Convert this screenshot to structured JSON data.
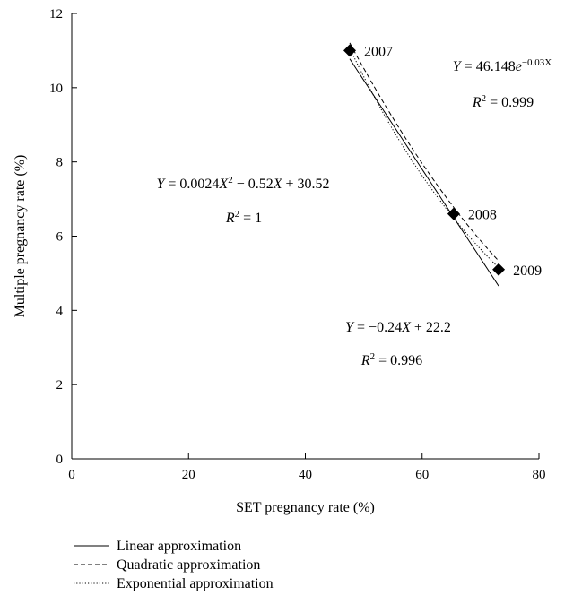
{
  "chart_data": {
    "type": "scatter",
    "xlabel": "SET pregnancy rate (%)",
    "ylabel": "Multiple pregnancy rate (%)",
    "xlim": [
      0,
      80
    ],
    "ylim": [
      0,
      12
    ],
    "xticks": [
      0,
      20,
      40,
      60,
      80
    ],
    "yticks": [
      0,
      2,
      4,
      6,
      8,
      10,
      12
    ],
    "grid": false,
    "points": [
      {
        "label": "2007",
        "x": 47.6,
        "y": 11.0
      },
      {
        "label": "2008",
        "x": 65.4,
        "y": 6.6
      },
      {
        "label": "2009",
        "x": 73.1,
        "y": 5.1
      }
    ],
    "series": [
      {
        "name": "Linear approximation",
        "style": "solid",
        "equation": "Y = −0.24X + 22.2",
        "r2": "R² = 0.996"
      },
      {
        "name": "Quadratic approximation",
        "style": "dashed",
        "equation": "Y = 0.0024X² − 0.52X + 30.52",
        "r2": "R² = 1"
      },
      {
        "name": "Exponential approximation",
        "style": "dotted",
        "equation": "Y = 46.148e^(−0.03X)",
        "r2": "R² = 0.999"
      }
    ],
    "legend_position": "bottom-left",
    "colors": {
      "line": "#000000",
      "marker": "#000000"
    }
  }
}
